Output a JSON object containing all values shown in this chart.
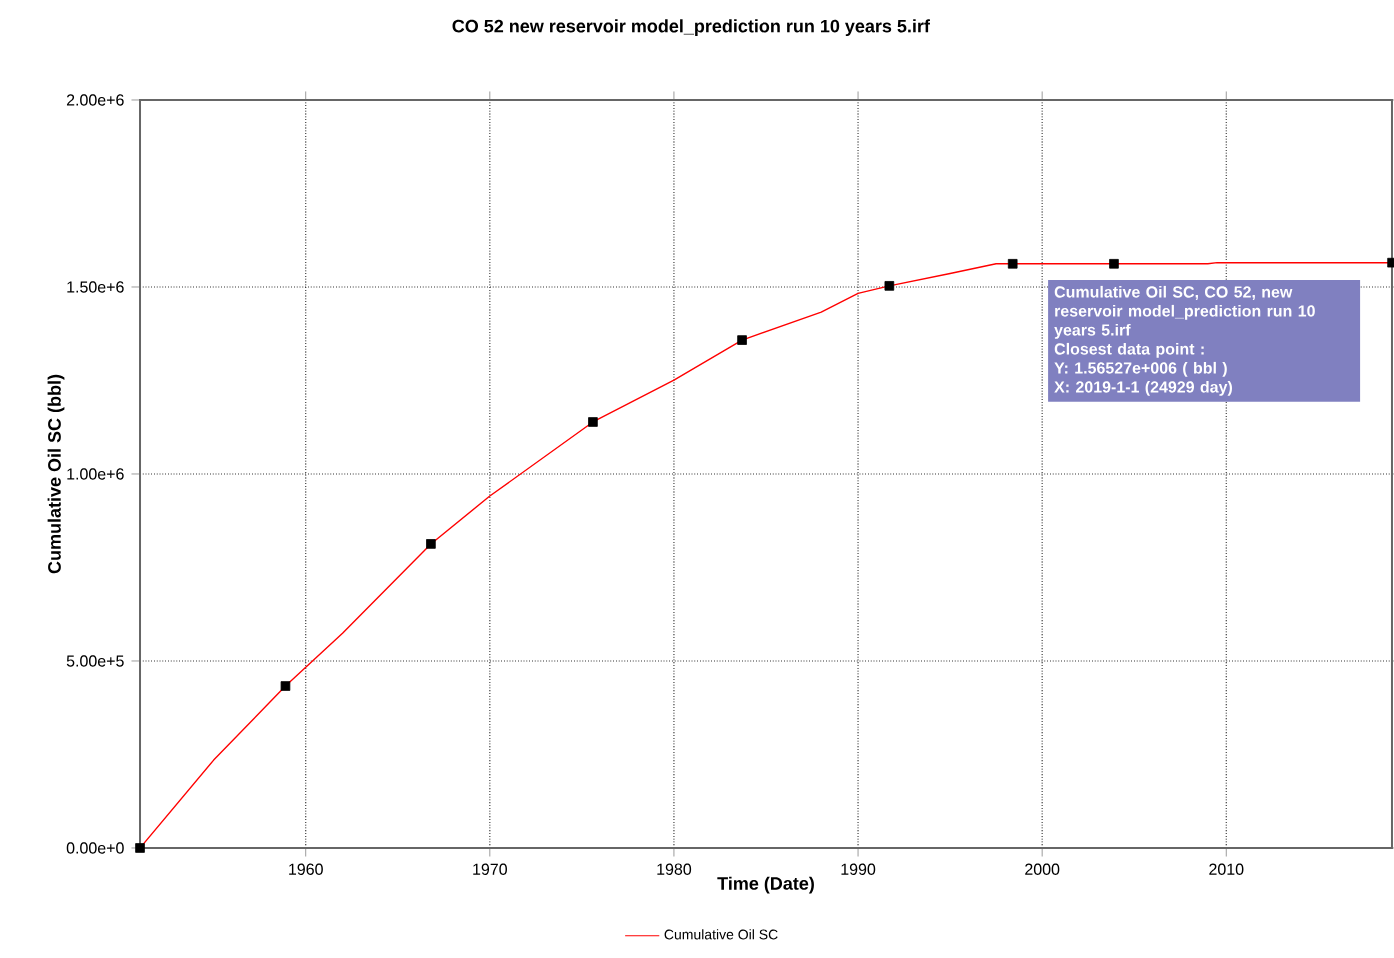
{
  "chart_data": {
    "type": "line",
    "title": "CO 52 new reservoir model_prediction run 10 years 5.irf",
    "xlabel": "Time (Date)",
    "ylabel": "Cumulative Oil SC (bbl)",
    "xlim": [
      1951,
      2019
    ],
    "xticks": [
      1960,
      1970,
      1980,
      1990,
      2000,
      2010
    ],
    "ylim": [
      0,
      2000000
    ],
    "yticks": [
      {
        "value": 0,
        "label": "0.00e+0"
      },
      {
        "value": 500000,
        "label": "5.00e+5"
      },
      {
        "value": 1000000,
        "label": "1.00e+6"
      },
      {
        "value": 1500000,
        "label": "1.50e+6"
      },
      {
        "value": 2000000,
        "label": "2.00e+6"
      }
    ],
    "grid": true,
    "legend": "bottom",
    "series": [
      {
        "name": "Cumulative Oil SC",
        "type": "line",
        "color": "#ff0000",
        "marker": "none",
        "line_style": "solid",
        "x": [
          1951,
          1955,
          1958.9,
          1962,
          1966.8,
          1970,
          1975.6,
          1980,
          1983.7,
          1988,
          1990,
          1991.7,
          1995,
          1997.5,
          1998.4,
          2003.9,
          2009,
          2009.5,
          2019
        ],
        "values": [
          0,
          235000,
          433000,
          574000,
          813000,
          941000,
          1139000,
          1251000,
          1358000,
          1433000,
          1483000,
          1503000,
          1536000,
          1562000,
          1562000,
          1562000,
          1562000,
          1565000,
          1565000
        ]
      },
      {
        "type": "scatter",
        "color": "#000000",
        "marker": "square",
        "x": [
          1951,
          1958.9,
          1966.8,
          1975.6,
          1983.7,
          1991.7,
          1998.4,
          2003.9,
          2019
        ],
        "values": [
          0,
          433000,
          813000,
          1139000,
          1358000,
          1503000,
          1562000,
          1562000,
          1565000
        ]
      }
    ],
    "annotations": [
      "Cumulative Oil SC, CO 52, new reservoir model_prediction run 10 years 5.irf",
      "Closest data point :",
      "Y: 1.56527e+006 ( bbl )",
      "X:  2019-1-1 (24929 day)"
    ]
  }
}
